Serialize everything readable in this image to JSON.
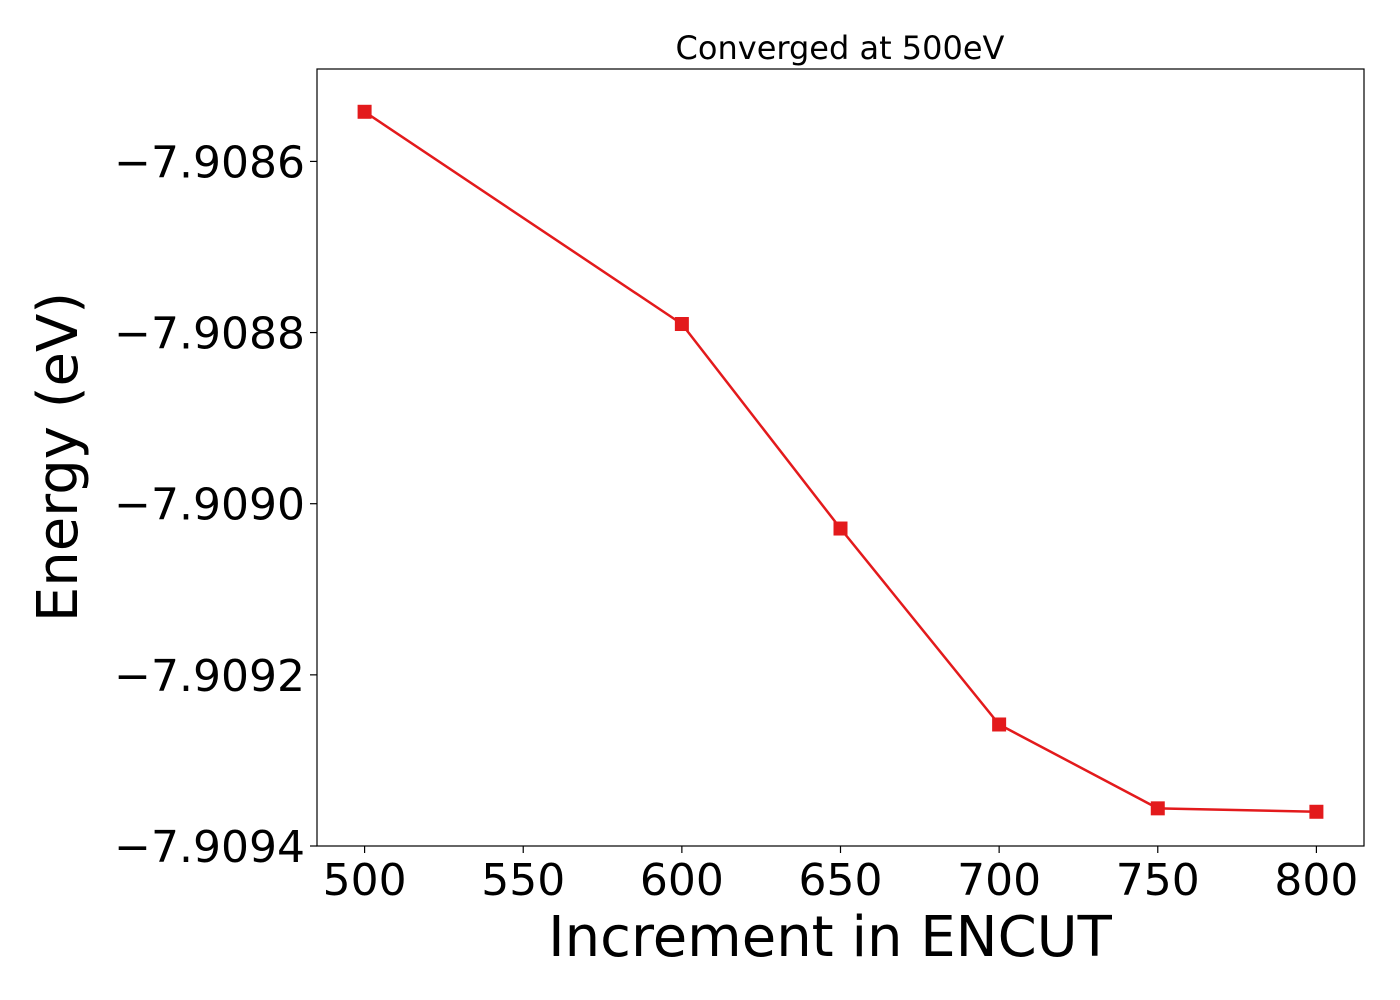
{
  "chart_data": {
    "type": "line",
    "title": "Converged at 500eV",
    "xlabel": "Increment in ENCUT",
    "ylabel": "Energy (eV)",
    "x": [
      500,
      600,
      650,
      700,
      750,
      800
    ],
    "series": [
      {
        "values": [
          -7.908542,
          -7.90879,
          -7.909029,
          -7.909258,
          -7.909356,
          -7.90936
        ],
        "color": "#e31a1c",
        "marker": "square"
      }
    ],
    "xlim": [
      485,
      815
    ],
    "ylim": [
      -7.9094,
      -7.908492
    ],
    "xticks": [
      500,
      550,
      600,
      650,
      700,
      750,
      800
    ],
    "xtick_labels": [
      "500",
      "550",
      "600",
      "650",
      "700",
      "750",
      "800"
    ],
    "yticks": [
      -7.9086,
      -7.9088,
      -7.909,
      -7.9092,
      -7.9094
    ],
    "ytick_labels": [
      "−7.9086",
      "−7.9088",
      "−7.9090",
      "−7.9092",
      "−7.9094"
    ],
    "grid": false,
    "legend": "none"
  }
}
